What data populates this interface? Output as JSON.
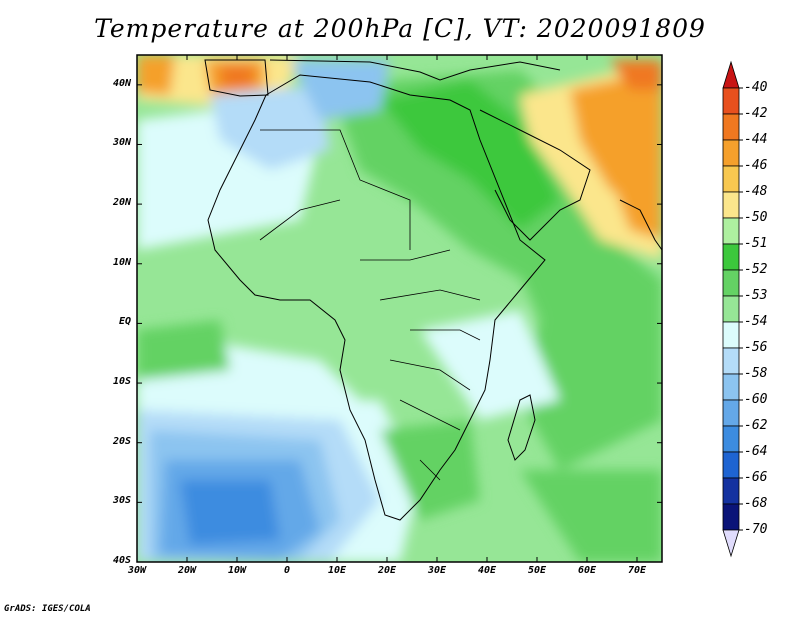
{
  "title": "Temperature at 200hPa [C], VT: 2020091809",
  "credit": "GrADS: IGES/COLA",
  "lat_labels": [
    "40N",
    "30N",
    "20N",
    "10N",
    "EQ",
    "10S",
    "20S",
    "30S",
    "40S"
  ],
  "lon_labels": [
    "30W",
    "20W",
    "10W",
    "0",
    "10E",
    "20E",
    "30E",
    "40E",
    "50E",
    "60E",
    "70E"
  ],
  "colorbar": {
    "labels": [
      "-40",
      "-42",
      "-44",
      "-46",
      "-48",
      "-50",
      "-51",
      "-52",
      "-53",
      "-54",
      "-56",
      "-58",
      "-60",
      "-62",
      "-64",
      "-66",
      "-68",
      "-70"
    ],
    "colors": [
      "#c81414",
      "#e8501e",
      "#f07820",
      "#f5a02c",
      "#f8c850",
      "#fbe68c",
      "#aef0a0",
      "#3cc83c",
      "#64d264",
      "#96e696",
      "#dcfcfc",
      "#b4dcf8",
      "#8cc4f0",
      "#64a8e8",
      "#3c8ce0",
      "#1e64d2",
      "#1432a0",
      "#0a1478",
      "#e0dcfc"
    ]
  },
  "map": {
    "extent": {
      "lon_min": -30,
      "lon_max": 75,
      "lat_min": -40,
      "lat_max": 45
    },
    "field_colors": {
      "hot": "#f5a02c",
      "warm": "#fbe68c",
      "orange": "#f07820",
      "green_dark": "#3cc83c",
      "green_mid": "#64d264",
      "green_light": "#96e696",
      "cyan": "#dcfcfc",
      "blue_light": "#b4dcf8",
      "blue_mid": "#8cc4f0",
      "blue": "#64a8e8",
      "blue_dark": "#3c8ce0"
    }
  }
}
